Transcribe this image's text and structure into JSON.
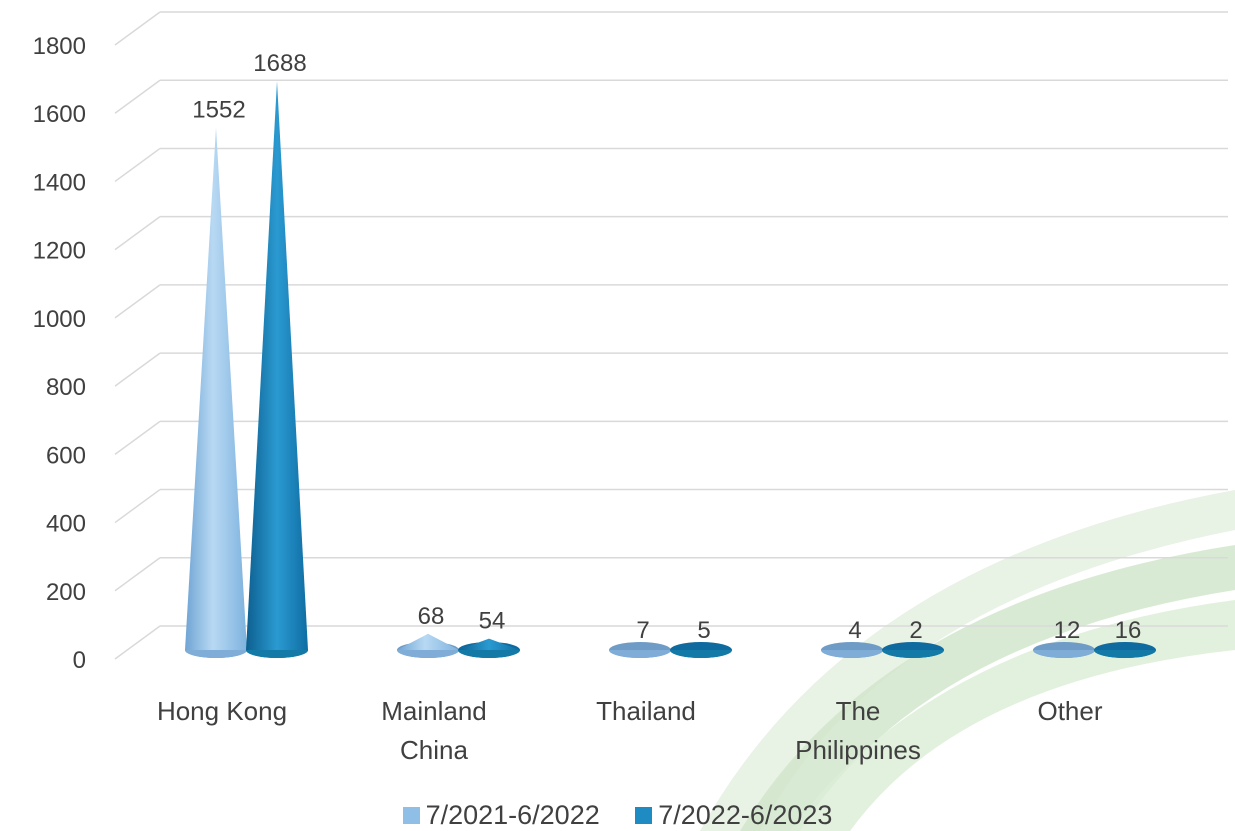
{
  "chart_data": {
    "type": "bar",
    "bar_shape": "cone",
    "categories": [
      "Hong Kong",
      "Mainland China",
      "Thailand",
      "The Philippines",
      "Other"
    ],
    "category_lines": [
      [
        "Hong Kong"
      ],
      [
        "Mainland",
        "China"
      ],
      [
        "Thailand"
      ],
      [
        "The",
        "Philippines"
      ],
      [
        "Other"
      ]
    ],
    "series": [
      {
        "name": "7/2021-6/2022",
        "values": [
          1552,
          68,
          7,
          4,
          12
        ],
        "color": "#8fbfe6"
      },
      {
        "name": "7/2022-6/2023",
        "values": [
          1688,
          54,
          5,
          2,
          16
        ],
        "color": "#1e8bc3"
      }
    ],
    "yticks": [
      "0",
      "200",
      "400",
      "600",
      "800",
      "1000",
      "1200",
      "1400",
      "1600",
      "1800"
    ],
    "ylim": [
      0,
      1800
    ],
    "grid": true,
    "legend_position": "bottom",
    "background_decoration": "green-arc"
  }
}
